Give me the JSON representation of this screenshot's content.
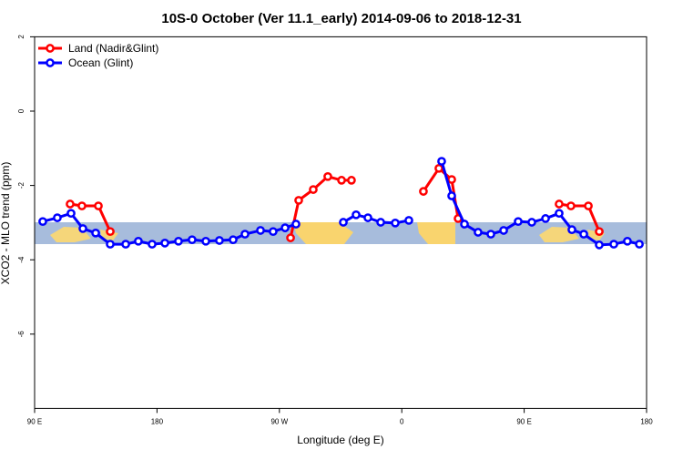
{
  "chart_data": {
    "type": "line",
    "title": "10S-0 October (Ver 11.1_early)   2014-09-06 to 2018-12-31",
    "x_label": "Longitude (deg E)",
    "y_label": "XCO2 - MLO trend (ppm)",
    "xlim": [
      90,
      540
    ],
    "ylim": [
      -8,
      2
    ],
    "xticks": [
      {
        "value": 90,
        "label": "90 E"
      },
      {
        "value": 180,
        "label": "180"
      },
      {
        "value": 270,
        "label": "90 W"
      },
      {
        "value": 360,
        "label": "0"
      },
      {
        "value": 450,
        "label": "90 E"
      },
      {
        "value": 540,
        "label": "180"
      }
    ],
    "yticks": [
      2,
      0,
      -2,
      -4,
      -6
    ],
    "legend": "top-left",
    "series": [
      {
        "name": "Land (Nadir&Glint)",
        "color": "#ff0000",
        "x": [
          116.1,
          124.8,
          136.9,
          145.6,
          null,
          278.2,
          284.2,
          294.9,
          305.6,
          315.7,
          323,
          null,
          375.9,
          387.3,
          396.7,
          401.4,
          null,
          475.7,
          484.4,
          497.2,
          505.2
        ],
        "values": [
          -2.5,
          -2.55,
          -2.55,
          -3.24,
          null,
          -3.41,
          -2.4,
          -2.11,
          -1.76,
          -1.86,
          -1.86,
          null,
          -2.16,
          -1.54,
          -1.84,
          -2.89,
          null,
          -2.5,
          -2.55,
          -2.55,
          -3.24
        ]
      },
      {
        "name": "Ocean (Glint)",
        "color": "#0000ff",
        "x": [
          96,
          106.7,
          116.8,
          125.5,
          134.9,
          145.6,
          157,
          166.3,
          176.4,
          185.8,
          195.8,
          205.8,
          215.9,
          225.9,
          236,
          244.7,
          256.1,
          265.4,
          274.2,
          282.2,
          null,
          317,
          326.4,
          335.1,
          344.5,
          355.2,
          365.2,
          null,
          389.3,
          396.7,
          406.1,
          416.1,
          425.5,
          434.9,
          445.6,
          455.6,
          465.7,
          475.7,
          485.1,
          493.8,
          505.2,
          515.9,
          525.9,
          534.7
        ],
        "values": [
          -2.97,
          -2.87,
          -2.75,
          -3.16,
          -3.28,
          -3.58,
          -3.58,
          -3.5,
          -3.58,
          -3.55,
          -3.5,
          -3.46,
          -3.5,
          -3.48,
          -3.46,
          -3.31,
          -3.21,
          -3.24,
          -3.14,
          -3.04,
          null,
          -2.99,
          -2.79,
          -2.87,
          -2.99,
          -3.01,
          -2.94,
          null,
          -1.35,
          -2.28,
          -3.04,
          -3.26,
          -3.31,
          -3.21,
          -2.97,
          -2.99,
          -2.89,
          -2.75,
          -3.19,
          -3.31,
          -3.6,
          -3.58,
          -3.5,
          -3.58
        ]
      }
    ]
  }
}
